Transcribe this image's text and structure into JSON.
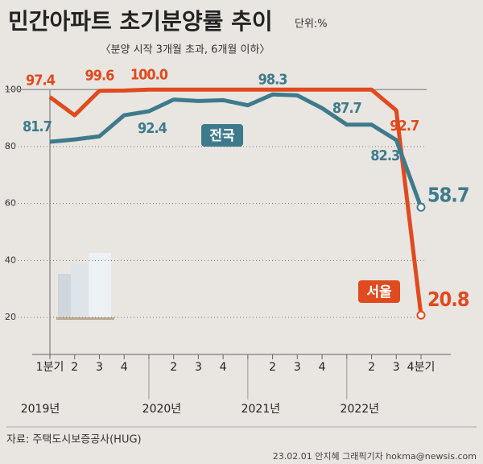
{
  "chart_data": {
    "type": "line",
    "title": "민간아파트 초기분양률 추이",
    "unit": "단위:%",
    "subtitle": "〈분양 시작 3개월 초과, 6개월 이하〉",
    "categories": [
      "1분기",
      "2",
      "3",
      "4",
      null,
      "2",
      "3",
      "4",
      null,
      "2",
      "3",
      "4",
      null,
      "2",
      "3",
      "4분기"
    ],
    "years": [
      "2019년",
      null,
      null,
      null,
      "2020년",
      null,
      null,
      null,
      "2021년",
      null,
      null,
      null,
      "2022년",
      null,
      null,
      null
    ],
    "series": [
      {
        "name": "서울",
        "color": "#e04a1f",
        "values": [
          97.4,
          91,
          99.6,
          99.7,
          100.0,
          100,
          100,
          100,
          100,
          100,
          100,
          100,
          100,
          100,
          92.7,
          20.8
        ],
        "value_labels": [
          "97.4",
          null,
          "99.6",
          null,
          "100.0",
          null,
          null,
          null,
          null,
          null,
          null,
          null,
          null,
          null,
          "92.7",
          "20.8"
        ]
      },
      {
        "name": "전국",
        "color": "#3d7b8c",
        "values": [
          81.7,
          82.5,
          83.6,
          91,
          92.4,
          96.5,
          96,
          96.3,
          94.5,
          98.3,
          98,
          93.5,
          87.7,
          87.7,
          82.3,
          58.7
        ],
        "value_labels": [
          "81.7",
          null,
          null,
          null,
          "92.4",
          null,
          null,
          null,
          null,
          "98.3",
          null,
          null,
          "87.7",
          null,
          "82.3",
          "58.7"
        ]
      }
    ],
    "ylim": [
      7,
      108
    ],
    "yticks": [
      20,
      40,
      60,
      80,
      100
    ],
    "grid": true,
    "source": "자료: 주택도시보증공사(HUG)",
    "credit": "23.02.01 안지혜 그래픽기자 hokma@newsis.com"
  }
}
